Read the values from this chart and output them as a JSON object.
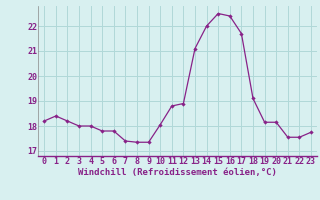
{
  "x": [
    0,
    1,
    2,
    3,
    4,
    5,
    6,
    7,
    8,
    9,
    10,
    11,
    12,
    13,
    14,
    15,
    16,
    17,
    18,
    19,
    20,
    21,
    22,
    23
  ],
  "y": [
    18.2,
    18.4,
    18.2,
    18.0,
    18.0,
    17.8,
    17.8,
    17.4,
    17.35,
    17.35,
    18.05,
    18.8,
    18.9,
    21.1,
    22.0,
    22.5,
    22.4,
    21.7,
    19.1,
    18.15,
    18.15,
    17.55,
    17.55,
    17.75
  ],
  "xlabel": "Windchill (Refroidissement éolien,°C)",
  "ylim": [
    16.8,
    22.8
  ],
  "xlim": [
    -0.5,
    23.5
  ],
  "yticks": [
    17,
    18,
    19,
    20,
    21,
    22
  ],
  "xticks": [
    0,
    1,
    2,
    3,
    4,
    5,
    6,
    7,
    8,
    9,
    10,
    11,
    12,
    13,
    14,
    15,
    16,
    17,
    18,
    19,
    20,
    21,
    22,
    23
  ],
  "line_color": "#882288",
  "marker": "D",
  "marker_size": 2.2,
  "bg_color": "#d8f0f0",
  "grid_color": "#b0d8d8",
  "label_fontsize": 6.5,
  "tick_fontsize": 6.0
}
